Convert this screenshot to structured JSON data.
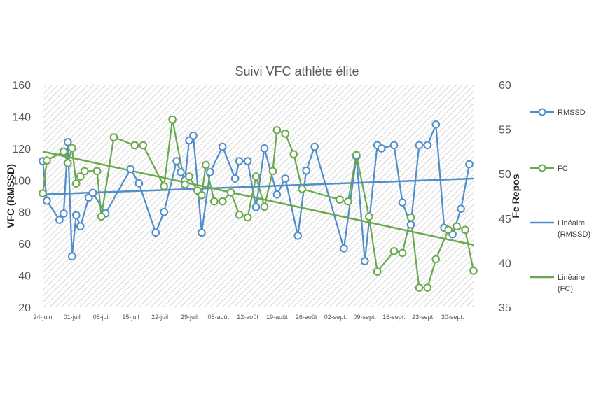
{
  "chart_data": {
    "type": "line",
    "title": "Suivi VFC athlète élite",
    "ylabel_left": "VFC (RMSSD)",
    "ylabel_right": "Fc Repos",
    "ylim_left": [
      20,
      160
    ],
    "ylim_right": [
      35,
      60
    ],
    "yticks_left": [
      20,
      40,
      60,
      80,
      100,
      120,
      140,
      160
    ],
    "yticks_right": [
      35,
      40,
      45,
      50,
      55,
      60
    ],
    "x_range": [
      "2024-06-24",
      "2024-10-05"
    ],
    "xticks": [
      {
        "date": "2024-06-24",
        "label": "24-juin"
      },
      {
        "date": "2024-07-01",
        "label": "01-juil"
      },
      {
        "date": "2024-07-08",
        "label": "08-juil"
      },
      {
        "date": "2024-07-15",
        "label": "15-juil"
      },
      {
        "date": "2024-07-22",
        "label": "22-juil"
      },
      {
        "date": "2024-07-29",
        "label": "29-juil"
      },
      {
        "date": "2024-08-05",
        "label": "05-août"
      },
      {
        "date": "2024-08-12",
        "label": "12-août"
      },
      {
        "date": "2024-08-19",
        "label": "19-août"
      },
      {
        "date": "2024-08-26",
        "label": "26-août"
      },
      {
        "date": "2024-09-02",
        "label": "02-sept."
      },
      {
        "date": "2024-09-09",
        "label": "09-sept."
      },
      {
        "date": "2024-09-16",
        "label": "16-sept."
      },
      {
        "date": "2024-09-23",
        "label": "23-sept."
      },
      {
        "date": "2024-09-30",
        "label": "30-sept."
      }
    ],
    "grid": "hatched",
    "legend_position": "right",
    "series": [
      {
        "name": "RMSSD",
        "axis": "left",
        "color": "#4f8dcb",
        "style": "line-markers",
        "points": [
          {
            "x": "2024-06-24",
            "y": 112
          },
          {
            "x": "2024-06-25",
            "y": 87
          },
          {
            "x": "2024-06-28",
            "y": 75
          },
          {
            "x": "2024-06-29",
            "y": 79
          },
          {
            "x": "2024-06-30",
            "y": 124
          },
          {
            "x": "2024-07-01",
            "y": 52
          },
          {
            "x": "2024-07-02",
            "y": 78
          },
          {
            "x": "2024-07-03",
            "y": 71
          },
          {
            "x": "2024-07-05",
            "y": 89
          },
          {
            "x": "2024-07-06",
            "y": 92
          },
          {
            "x": "2024-07-09",
            "y": 79
          },
          {
            "x": "2024-07-15",
            "y": 107
          },
          {
            "x": "2024-07-17",
            "y": 98
          },
          {
            "x": "2024-07-21",
            "y": 67
          },
          {
            "x": "2024-07-23",
            "y": 80
          },
          {
            "x": "2024-07-26",
            "y": 112
          },
          {
            "x": "2024-07-27",
            "y": 105
          },
          {
            "x": "2024-07-28",
            "y": 100
          },
          {
            "x": "2024-07-29",
            "y": 125
          },
          {
            "x": "2024-07-30",
            "y": 128
          },
          {
            "x": "2024-08-01",
            "y": 67
          },
          {
            "x": "2024-08-03",
            "y": 105
          },
          {
            "x": "2024-08-06",
            "y": 121
          },
          {
            "x": "2024-08-09",
            "y": 101
          },
          {
            "x": "2024-08-10",
            "y": 112
          },
          {
            "x": "2024-08-12",
            "y": 112
          },
          {
            "x": "2024-08-14",
            "y": 83
          },
          {
            "x": "2024-08-16",
            "y": 120
          },
          {
            "x": "2024-08-19",
            "y": 91
          },
          {
            "x": "2024-08-21",
            "y": 101
          },
          {
            "x": "2024-08-24",
            "y": 65
          },
          {
            "x": "2024-08-26",
            "y": 106
          },
          {
            "x": "2024-08-28",
            "y": 121
          },
          {
            "x": "2024-09-04",
            "y": 57
          },
          {
            "x": "2024-09-07",
            "y": 115
          },
          {
            "x": "2024-09-09",
            "y": 49
          },
          {
            "x": "2024-09-12",
            "y": 122
          },
          {
            "x": "2024-09-13",
            "y": 120
          },
          {
            "x": "2024-09-16",
            "y": 122
          },
          {
            "x": "2024-09-18",
            "y": 86
          },
          {
            "x": "2024-09-20",
            "y": 72
          },
          {
            "x": "2024-09-22",
            "y": 122
          },
          {
            "x": "2024-09-24",
            "y": 122
          },
          {
            "x": "2024-09-26",
            "y": 135
          },
          {
            "x": "2024-09-28",
            "y": 70
          },
          {
            "x": "2024-09-30",
            "y": 66
          },
          {
            "x": "2024-10-02",
            "y": 82
          },
          {
            "x": "2024-10-04",
            "y": 110
          }
        ]
      },
      {
        "name": "FC",
        "axis": "right",
        "color": "#6aa84f",
        "style": "line-markers",
        "points": [
          {
            "x": "2024-06-24",
            "y": 47.8
          },
          {
            "x": "2024-06-25",
            "y": 51.5
          },
          {
            "x": "2024-06-29",
            "y": 52.5
          },
          {
            "x": "2024-06-30",
            "y": 51.2
          },
          {
            "x": "2024-07-01",
            "y": 52.9
          },
          {
            "x": "2024-07-02",
            "y": 48.9
          },
          {
            "x": "2024-07-03",
            "y": 49.7
          },
          {
            "x": "2024-07-04",
            "y": 50.3
          },
          {
            "x": "2024-07-07",
            "y": 50.3
          },
          {
            "x": "2024-07-08",
            "y": 45.2
          },
          {
            "x": "2024-07-11",
            "y": 54.1
          },
          {
            "x": "2024-07-16",
            "y": 53.2
          },
          {
            "x": "2024-07-18",
            "y": 53.2
          },
          {
            "x": "2024-07-23",
            "y": 48.6
          },
          {
            "x": "2024-07-25",
            "y": 56.1
          },
          {
            "x": "2024-07-28",
            "y": 48.8
          },
          {
            "x": "2024-07-29",
            "y": 49.7
          },
          {
            "x": "2024-07-31",
            "y": 48.1
          },
          {
            "x": "2024-08-01",
            "y": 47.6
          },
          {
            "x": "2024-08-02",
            "y": 51.0
          },
          {
            "x": "2024-08-04",
            "y": 46.9
          },
          {
            "x": "2024-08-06",
            "y": 46.9
          },
          {
            "x": "2024-08-08",
            "y": 47.9
          },
          {
            "x": "2024-08-10",
            "y": 45.4
          },
          {
            "x": "2024-08-12",
            "y": 45.1
          },
          {
            "x": "2024-08-14",
            "y": 49.7
          },
          {
            "x": "2024-08-16",
            "y": 46.3
          },
          {
            "x": "2024-08-18",
            "y": 50.3
          },
          {
            "x": "2024-08-19",
            "y": 54.9
          },
          {
            "x": "2024-08-21",
            "y": 54.5
          },
          {
            "x": "2024-08-23",
            "y": 52.2
          },
          {
            "x": "2024-08-25",
            "y": 48.3
          },
          {
            "x": "2024-09-03",
            "y": 47.1
          },
          {
            "x": "2024-09-05",
            "y": 46.9
          },
          {
            "x": "2024-09-07",
            "y": 52.1
          },
          {
            "x": "2024-09-10",
            "y": 45.2
          },
          {
            "x": "2024-09-12",
            "y": 39.0
          },
          {
            "x": "2024-09-16",
            "y": 41.3
          },
          {
            "x": "2024-09-18",
            "y": 41.1
          },
          {
            "x": "2024-09-20",
            "y": 45.1
          },
          {
            "x": "2024-09-22",
            "y": 37.2
          },
          {
            "x": "2024-09-24",
            "y": 37.2
          },
          {
            "x": "2024-09-26",
            "y": 40.4
          },
          {
            "x": "2024-09-29",
            "y": 43.7
          },
          {
            "x": "2024-10-01",
            "y": 44.1
          },
          {
            "x": "2024-10-03",
            "y": 43.7
          },
          {
            "x": "2024-10-05",
            "y": 39.1
          }
        ]
      },
      {
        "name": "Linéaire (RMSSD)",
        "axis": "left",
        "color": "#4f8dcb",
        "style": "trendline",
        "points": [
          {
            "x": "2024-06-24",
            "y": 91
          },
          {
            "x": "2024-10-05",
            "y": 101
          }
        ]
      },
      {
        "name": "Linéaire (FC)",
        "axis": "right",
        "color": "#6aa84f",
        "style": "trendline",
        "points": [
          {
            "x": "2024-06-24",
            "y": 52.5
          },
          {
            "x": "2024-10-05",
            "y": 42.0
          }
        ]
      }
    ]
  }
}
